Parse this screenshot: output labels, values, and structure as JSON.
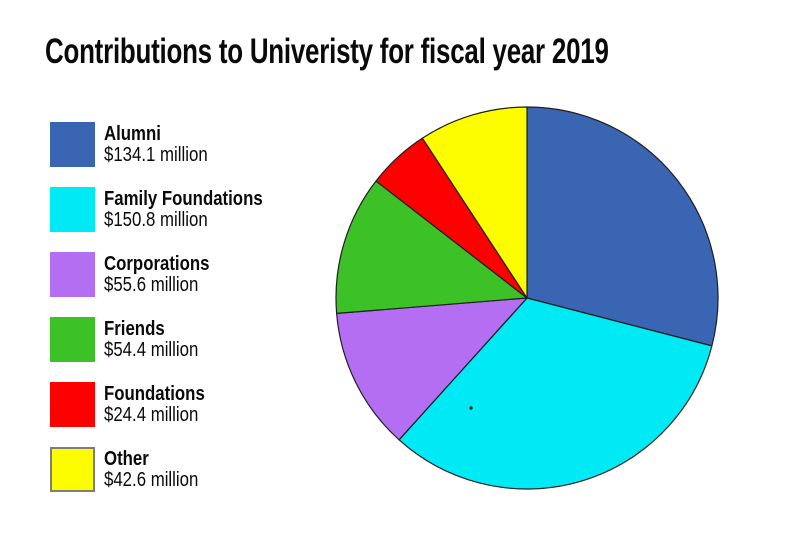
{
  "title": "Contributions to Univeristy for fiscal year 2019",
  "chart_data": {
    "type": "pie",
    "title": "Contributions to Univeristy for fiscal year 2019",
    "unit": "$ million",
    "start_angle_deg": 0,
    "direction": "clockwise",
    "legend_position": "left",
    "stroke_color": "#1f1f1f",
    "total": 461.9,
    "slices": [
      {
        "label": "Alumni",
        "value": 134.1,
        "value_label": "$134.1 million",
        "color": "#3a65b3"
      },
      {
        "label": "Family Foundations",
        "value": 150.8,
        "value_label": "$150.8 million",
        "color": "#00eaf5"
      },
      {
        "label": "Corporations",
        "value": 55.6,
        "value_label": "$55.6 million",
        "color": "#b46ef2"
      },
      {
        "label": "Friends",
        "value": 54.4,
        "value_label": "$54.4 million",
        "color": "#3cc226"
      },
      {
        "label": "Foundations",
        "value": 24.4,
        "value_label": "$24.4 million",
        "color": "#fd0000"
      },
      {
        "label": "Other",
        "value": 42.6,
        "value_label": "$42.6 million",
        "color": "#fdfd00",
        "swatch_border": "#7d7d7d"
      }
    ]
  }
}
